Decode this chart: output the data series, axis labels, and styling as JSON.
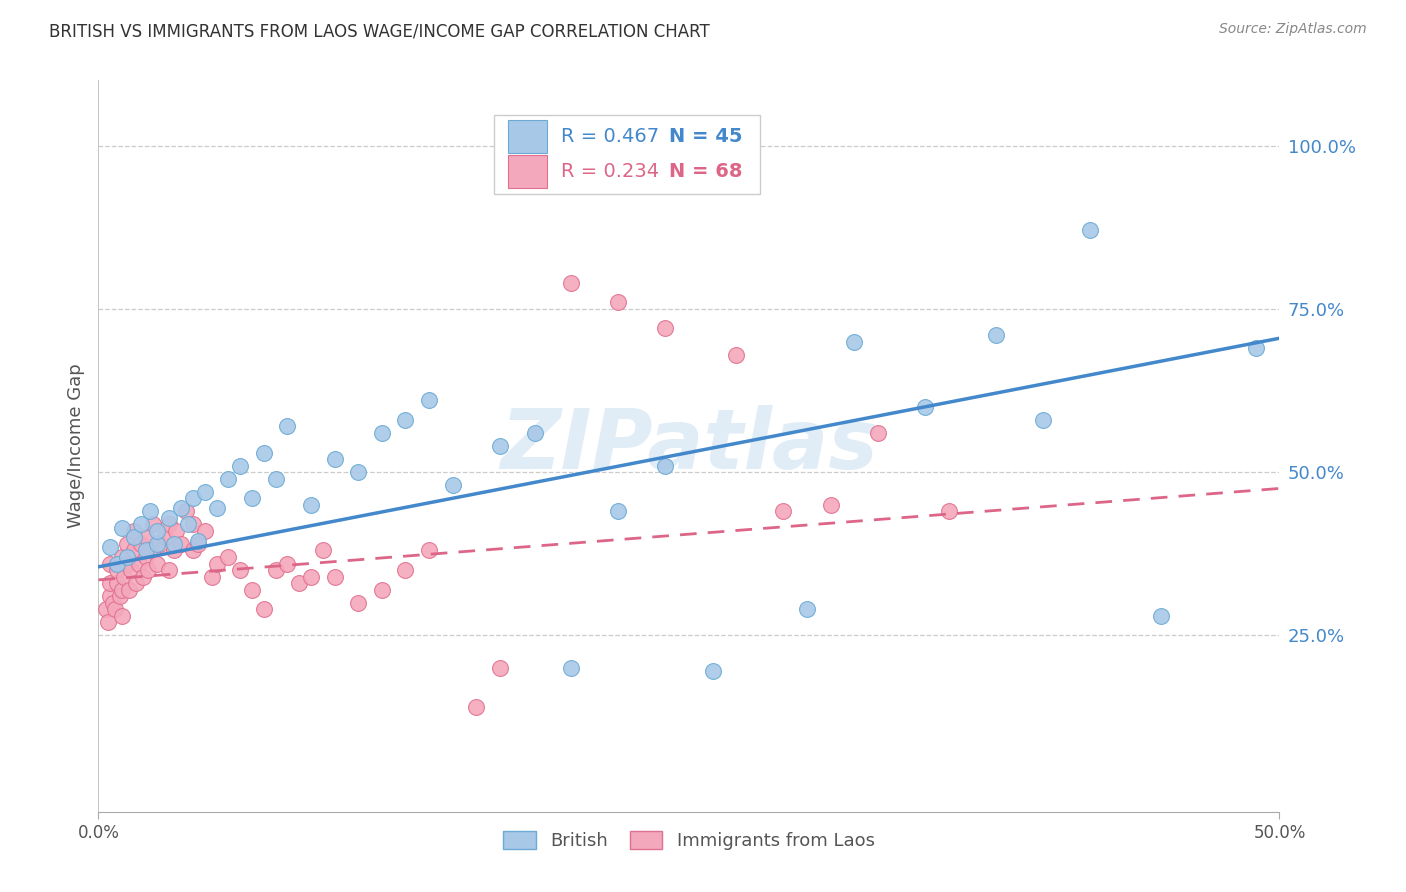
{
  "title": "BRITISH VS IMMIGRANTS FROM LAOS WAGE/INCOME GAP CORRELATION CHART",
  "source": "Source: ZipAtlas.com",
  "ylabel": "Wage/Income Gap",
  "xlim": [
    0.0,
    0.5
  ],
  "ylim": [
    -0.02,
    1.1
  ],
  "xticks": [
    0.0,
    0.5
  ],
  "xticklabels": [
    "0.0%",
    "50.0%"
  ],
  "yticks_right": [
    0.25,
    0.5,
    0.75,
    1.0
  ],
  "yticklabels_right": [
    "25.0%",
    "50.0%",
    "75.0%",
    "100.0%"
  ],
  "yticks_grid": [
    0.25,
    0.5,
    0.75,
    1.0
  ],
  "british_color": "#a8c8e8",
  "british_edge": "#6aaad4",
  "laos_color": "#f4a8bc",
  "laos_edge": "#e07090",
  "line_british_color": "#4488cc",
  "line_laos_color": "#dd6688",
  "line_laos_style": "--",
  "R_british": 0.467,
  "N_british": 45,
  "R_laos": 0.234,
  "N_laos": 68,
  "watermark": "ZIPatlas",
  "watermark_color": "#c8ddf0",
  "legend_label_british": "British",
  "legend_label_laos": "Immigrants from Laos",
  "british_x": [
    0.005,
    0.008,
    0.01,
    0.012,
    0.015,
    0.018,
    0.02,
    0.022,
    0.025,
    0.025,
    0.03,
    0.032,
    0.035,
    0.038,
    0.04,
    0.042,
    0.045,
    0.05,
    0.055,
    0.06,
    0.065,
    0.07,
    0.075,
    0.08,
    0.09,
    0.1,
    0.11,
    0.12,
    0.13,
    0.14,
    0.15,
    0.17,
    0.185,
    0.2,
    0.22,
    0.24,
    0.26,
    0.3,
    0.32,
    0.35,
    0.38,
    0.4,
    0.42,
    0.45,
    0.49
  ],
  "british_y": [
    0.385,
    0.36,
    0.415,
    0.37,
    0.4,
    0.42,
    0.38,
    0.44,
    0.39,
    0.41,
    0.43,
    0.39,
    0.445,
    0.42,
    0.46,
    0.395,
    0.47,
    0.445,
    0.49,
    0.51,
    0.46,
    0.53,
    0.49,
    0.57,
    0.45,
    0.52,
    0.5,
    0.56,
    0.58,
    0.61,
    0.48,
    0.54,
    0.56,
    0.2,
    0.44,
    0.51,
    0.195,
    0.29,
    0.7,
    0.6,
    0.71,
    0.58,
    0.87,
    0.28,
    0.69
  ],
  "laos_x": [
    0.003,
    0.004,
    0.005,
    0.005,
    0.005,
    0.006,
    0.007,
    0.008,
    0.008,
    0.009,
    0.01,
    0.01,
    0.01,
    0.011,
    0.012,
    0.012,
    0.013,
    0.014,
    0.015,
    0.015,
    0.016,
    0.017,
    0.018,
    0.019,
    0.02,
    0.02,
    0.021,
    0.022,
    0.023,
    0.025,
    0.026,
    0.028,
    0.03,
    0.03,
    0.032,
    0.033,
    0.035,
    0.037,
    0.04,
    0.04,
    0.042,
    0.045,
    0.048,
    0.05,
    0.055,
    0.06,
    0.065,
    0.07,
    0.075,
    0.08,
    0.085,
    0.09,
    0.095,
    0.1,
    0.11,
    0.12,
    0.13,
    0.14,
    0.16,
    0.17,
    0.2,
    0.22,
    0.24,
    0.27,
    0.29,
    0.31,
    0.33,
    0.36
  ],
  "laos_y": [
    0.29,
    0.27,
    0.31,
    0.33,
    0.36,
    0.3,
    0.29,
    0.33,
    0.35,
    0.31,
    0.28,
    0.32,
    0.37,
    0.34,
    0.36,
    0.39,
    0.32,
    0.35,
    0.38,
    0.41,
    0.33,
    0.36,
    0.39,
    0.34,
    0.37,
    0.4,
    0.35,
    0.38,
    0.42,
    0.36,
    0.39,
    0.4,
    0.35,
    0.42,
    0.38,
    0.41,
    0.39,
    0.44,
    0.38,
    0.42,
    0.39,
    0.41,
    0.34,
    0.36,
    0.37,
    0.35,
    0.32,
    0.29,
    0.35,
    0.36,
    0.33,
    0.34,
    0.38,
    0.34,
    0.3,
    0.32,
    0.35,
    0.38,
    0.14,
    0.2,
    0.79,
    0.76,
    0.72,
    0.68,
    0.44,
    0.45,
    0.56,
    0.44
  ]
}
